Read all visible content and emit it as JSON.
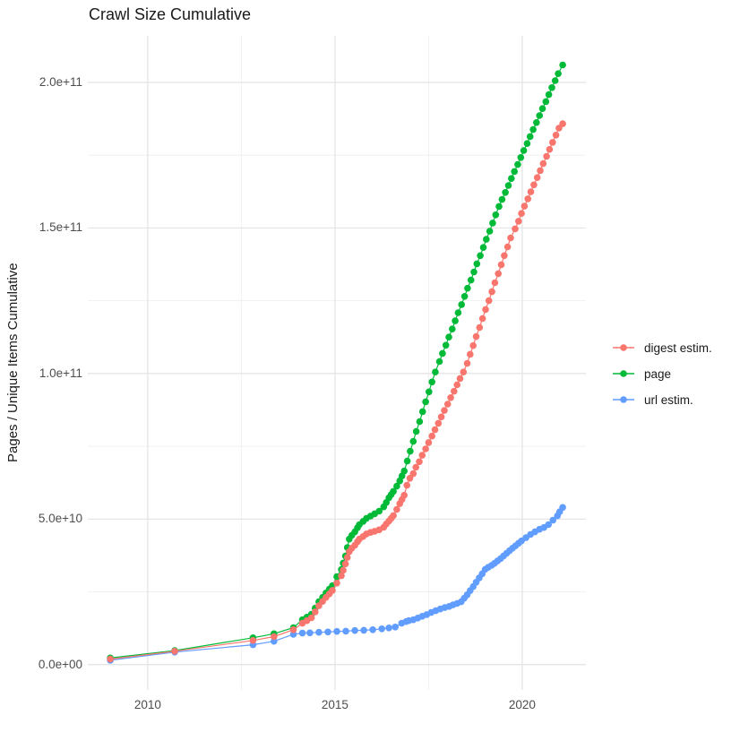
{
  "title": "Crawl Size Cumulative",
  "axes": {
    "x": {
      "domain": [
        2008.4,
        2021.7
      ],
      "ticks_major": [
        {
          "value": 2010,
          "label": "2010"
        },
        {
          "value": 2015,
          "label": "2015"
        },
        {
          "value": 2020,
          "label": "2020"
        }
      ],
      "ticks_minor": [
        2012.5,
        2017.5
      ]
    },
    "y": {
      "label": "Pages / Unique Items Cumulative",
      "domain": [
        -8700000000.0,
        216000000000.0
      ],
      "ticks_major": [
        {
          "value": 0,
          "label": "0.0e+00"
        },
        {
          "value": 50000000000.0,
          "label": "5.0e+10"
        },
        {
          "value": 100000000000.0,
          "label": "1.0e+11"
        },
        {
          "value": 150000000000.0,
          "label": "1.5e+11"
        },
        {
          "value": 200000000000.0,
          "label": "2.0e+11"
        }
      ],
      "ticks_minor": [
        25000000000.0,
        75000000000.0,
        125000000000.0,
        175000000000.0
      ]
    }
  },
  "style": {
    "grid_major_color": "#e3e3e3",
    "grid_minor_color": "#f0f0f0",
    "point_radius": 3.8,
    "line_width": 1.2
  },
  "legend": {
    "items": [
      {
        "label": "digest estim.",
        "color": "#F8766D"
      },
      {
        "label": "page",
        "color": "#00BA38"
      },
      {
        "label": "url estim.",
        "color": "#619CFF"
      }
    ]
  },
  "chart_data": {
    "type": "line",
    "title": "Crawl Size Cumulative",
    "xlabel": "",
    "ylabel": "Pages / Unique Items Cumulative",
    "x_unit": "year",
    "y_unit": "pages / unique items (cumulative)",
    "xlim": [
      2008.4,
      2021.7
    ],
    "ylim": [
      -8700000000.0,
      216000000000.0
    ],
    "grid": true,
    "legend_position": "right",
    "series": [
      {
        "name": "digest estim.",
        "color": "#F8766D",
        "points": [
          [
            2009.0,
            1900000000.0
          ],
          [
            2010.72,
            4600000000.0
          ],
          [
            2012.81,
            8300000000.0
          ],
          [
            2013.37,
            9600000000.0
          ],
          [
            2013.89,
            12000000000.0
          ],
          [
            2014.13,
            14200000000.0
          ],
          [
            2014.25,
            15100000000.0
          ],
          [
            2014.37,
            16100000000.0
          ],
          [
            2014.47,
            18100000000.0
          ],
          [
            2014.57,
            20200000000.0
          ],
          [
            2014.67,
            21700000000.0
          ],
          [
            2014.76,
            23100000000.0
          ],
          [
            2014.85,
            24300000000.0
          ],
          [
            2014.93,
            25500000000.0
          ],
          [
            2015.05,
            28000000000.0
          ],
          [
            2015.17,
            30500000000.0
          ],
          [
            2015.22,
            32400000000.0
          ],
          [
            2015.28,
            34600000000.0
          ],
          [
            2015.33,
            36800000000.0
          ],
          [
            2015.38,
            38800000000.0
          ],
          [
            2015.45,
            40000000000.0
          ],
          [
            2015.53,
            41000000000.0
          ],
          [
            2015.6,
            42200000000.0
          ],
          [
            2015.65,
            43100000000.0
          ],
          [
            2015.75,
            44000000000.0
          ],
          [
            2015.84,
            44900000000.0
          ],
          [
            2015.95,
            45400000000.0
          ],
          [
            2016.06,
            45800000000.0
          ],
          [
            2016.18,
            46300000000.0
          ],
          [
            2016.3,
            47200000000.0
          ],
          [
            2016.37,
            48300000000.0
          ],
          [
            2016.44,
            49300000000.0
          ],
          [
            2016.5,
            50200000000.0
          ],
          [
            2016.56,
            51200000000.0
          ],
          [
            2016.65,
            53300000000.0
          ],
          [
            2016.73,
            55300000000.0
          ],
          [
            2016.79,
            56700000000.0
          ],
          [
            2016.85,
            58200000000.0
          ],
          [
            2016.92,
            61600000000.0
          ],
          [
            2017.0,
            64000000000.0
          ],
          [
            2017.09,
            65600000000.0
          ],
          [
            2017.16,
            67800000000.0
          ],
          [
            2017.25,
            69700000000.0
          ],
          [
            2017.33,
            71900000000.0
          ],
          [
            2017.42,
            74100000000.0
          ],
          [
            2017.5,
            76300000000.0
          ],
          [
            2017.59,
            78500000000.0
          ],
          [
            2017.67,
            80700000000.0
          ],
          [
            2017.76,
            82900000000.0
          ],
          [
            2017.84,
            85100000000.0
          ],
          [
            2017.92,
            87300000000.0
          ],
          [
            2018.01,
            89500000000.0
          ],
          [
            2018.09,
            91700000000.0
          ],
          [
            2018.18,
            93900000000.0
          ],
          [
            2018.26,
            96100000000.0
          ],
          [
            2018.34,
            98300000000.0
          ],
          [
            2018.43,
            100500000000.0
          ],
          [
            2018.53,
            103500000000.0
          ],
          [
            2018.61,
            106600000000.0
          ],
          [
            2018.69,
            109600000000.0
          ],
          [
            2018.77,
            112700000000.0
          ],
          [
            2018.86,
            115800000000.0
          ],
          [
            2018.94,
            118900000000.0
          ],
          [
            2019.02,
            122000000000.0
          ],
          [
            2019.11,
            125000000000.0
          ],
          [
            2019.19,
            128100000000.0
          ],
          [
            2019.27,
            131200000000.0
          ],
          [
            2019.36,
            134300000000.0
          ],
          [
            2019.44,
            137400000000.0
          ],
          [
            2019.52,
            140500000000.0
          ],
          [
            2019.61,
            143500000000.0
          ],
          [
            2019.69,
            146600000000.0
          ],
          [
            2019.81,
            149700000000.0
          ],
          [
            2019.9,
            152300000000.0
          ],
          [
            2019.98,
            155000000000.0
          ],
          [
            2020.06,
            157500000000.0
          ],
          [
            2020.15,
            160000000000.0
          ],
          [
            2020.23,
            162400000000.0
          ],
          [
            2020.31,
            164800000000.0
          ],
          [
            2020.4,
            167300000000.0
          ],
          [
            2020.48,
            169700000000.0
          ],
          [
            2020.56,
            172100000000.0
          ],
          [
            2020.65,
            174600000000.0
          ],
          [
            2020.73,
            177000000000.0
          ],
          [
            2020.81,
            179400000000.0
          ],
          [
            2020.9,
            181900000000.0
          ],
          [
            2020.98,
            184300000000.0
          ],
          [
            2021.08,
            185800000000.0
          ]
        ]
      },
      {
        "name": "page",
        "color": "#00BA38",
        "points": [
          [
            2009.0,
            2300000000.0
          ],
          [
            2010.72,
            4800000000.0
          ],
          [
            2012.81,
            9200000000.0
          ],
          [
            2013.37,
            10600000000.0
          ],
          [
            2013.89,
            12700000000.0
          ],
          [
            2014.13,
            15400000000.0
          ],
          [
            2014.25,
            16300000000.0
          ],
          [
            2014.37,
            17300000000.0
          ],
          [
            2014.47,
            19400000000.0
          ],
          [
            2014.57,
            21600000000.0
          ],
          [
            2014.67,
            23100000000.0
          ],
          [
            2014.76,
            24600000000.0
          ],
          [
            2014.85,
            25900000000.0
          ],
          [
            2014.93,
            27100000000.0
          ],
          [
            2015.05,
            30200000000.0
          ],
          [
            2015.17,
            32700000000.0
          ],
          [
            2015.22,
            34900000000.0
          ],
          [
            2015.28,
            37300000000.0
          ],
          [
            2015.33,
            40200000000.0
          ],
          [
            2015.38,
            43100000000.0
          ],
          [
            2015.45,
            44400000000.0
          ],
          [
            2015.53,
            45600000000.0
          ],
          [
            2015.6,
            47000000000.0
          ],
          [
            2015.65,
            48100000000.0
          ],
          [
            2015.75,
            49200000000.0
          ],
          [
            2015.84,
            50200000000.0
          ],
          [
            2015.95,
            51000000000.0
          ],
          [
            2016.06,
            51800000000.0
          ],
          [
            2016.18,
            52700000000.0
          ],
          [
            2016.3,
            54200000000.0
          ],
          [
            2016.37,
            55700000000.0
          ],
          [
            2016.44,
            57300000000.0
          ],
          [
            2016.5,
            58400000000.0
          ],
          [
            2016.56,
            59500000000.0
          ],
          [
            2016.65,
            61300000000.0
          ],
          [
            2016.73,
            63100000000.0
          ],
          [
            2016.79,
            64800000000.0
          ],
          [
            2016.85,
            66500000000.0
          ],
          [
            2016.93,
            69900000000.0
          ],
          [
            2017.01,
            73300000000.0
          ],
          [
            2017.09,
            76700000000.0
          ],
          [
            2017.17,
            80100000000.0
          ],
          [
            2017.26,
            83500000000.0
          ],
          [
            2017.34,
            86900000000.0
          ],
          [
            2017.42,
            90300000000.0
          ],
          [
            2017.51,
            93700000000.0
          ],
          [
            2017.59,
            97100000000.0
          ],
          [
            2017.68,
            100500000000.0
          ],
          [
            2017.79,
            104100000000.0
          ],
          [
            2017.87,
            106900000000.0
          ],
          [
            2017.96,
            109700000000.0
          ],
          [
            2018.04,
            112500000000.0
          ],
          [
            2018.13,
            115300000000.0
          ],
          [
            2018.21,
            118100000000.0
          ],
          [
            2018.29,
            120900000000.0
          ],
          [
            2018.38,
            123700000000.0
          ],
          [
            2018.46,
            126500000000.0
          ],
          [
            2018.54,
            129300000000.0
          ],
          [
            2018.63,
            132100000000.0
          ],
          [
            2018.71,
            134900000000.0
          ],
          [
            2018.79,
            137700000000.0
          ],
          [
            2018.88,
            140500000000.0
          ],
          [
            2018.96,
            143300000000.0
          ],
          [
            2019.04,
            146100000000.0
          ],
          [
            2019.13,
            148900000000.0
          ],
          [
            2019.21,
            151700000000.0
          ],
          [
            2019.29,
            154500000000.0
          ],
          [
            2019.38,
            157400000000.0
          ],
          [
            2019.46,
            159800000000.0
          ],
          [
            2019.55,
            162200000000.0
          ],
          [
            2019.63,
            164600000000.0
          ],
          [
            2019.71,
            167000000000.0
          ],
          [
            2019.79,
            169400000000.0
          ],
          [
            2019.88,
            171800000000.0
          ],
          [
            2019.96,
            174200000000.0
          ],
          [
            2020.04,
            176600000000.0
          ],
          [
            2020.13,
            179000000000.0
          ],
          [
            2020.21,
            181400000000.0
          ],
          [
            2020.29,
            183800000000.0
          ],
          [
            2020.38,
            186200000000.0
          ],
          [
            2020.46,
            188600000000.0
          ],
          [
            2020.54,
            191000000000.0
          ],
          [
            2020.63,
            193400000000.0
          ],
          [
            2020.71,
            195800000000.0
          ],
          [
            2020.79,
            198200000000.0
          ],
          [
            2020.88,
            200600000000.0
          ],
          [
            2020.96,
            203000000000.0
          ],
          [
            2021.08,
            206000000000.0
          ]
        ]
      },
      {
        "name": "url estim.",
        "color": "#619CFF",
        "points": [
          [
            2009.0,
            1500000000.0
          ],
          [
            2010.72,
            4300000000.0
          ],
          [
            2012.81,
            6800000000.0
          ],
          [
            2013.37,
            8000000000.0
          ],
          [
            2013.89,
            10400000000.0
          ],
          [
            2014.13,
            10800000000.0
          ],
          [
            2014.33,
            10900000000.0
          ],
          [
            2014.57,
            11100000000.0
          ],
          [
            2014.81,
            11200000000.0
          ],
          [
            2015.05,
            11400000000.0
          ],
          [
            2015.29,
            11500000000.0
          ],
          [
            2015.53,
            11700000000.0
          ],
          [
            2015.77,
            11800000000.0
          ],
          [
            2016.01,
            12000000000.0
          ],
          [
            2016.25,
            12300000000.0
          ],
          [
            2016.44,
            12600000000.0
          ],
          [
            2016.61,
            12900000000.0
          ],
          [
            2016.78,
            14200000000.0
          ],
          [
            2016.9,
            14800000000.0
          ],
          [
            2016.97,
            15100000000.0
          ],
          [
            2017.09,
            15400000000.0
          ],
          [
            2017.21,
            16000000000.0
          ],
          [
            2017.33,
            16600000000.0
          ],
          [
            2017.45,
            17200000000.0
          ],
          [
            2017.57,
            17900000000.0
          ],
          [
            2017.69,
            18500000000.0
          ],
          [
            2017.81,
            19100000000.0
          ],
          [
            2017.93,
            19600000000.0
          ],
          [
            2018.05,
            20000000000.0
          ],
          [
            2018.15,
            20500000000.0
          ],
          [
            2018.26,
            21000000000.0
          ],
          [
            2018.37,
            21600000000.0
          ],
          [
            2018.45,
            22800000000.0
          ],
          [
            2018.53,
            24000000000.0
          ],
          [
            2018.61,
            25400000000.0
          ],
          [
            2018.69,
            26800000000.0
          ],
          [
            2018.77,
            28300000000.0
          ],
          [
            2018.85,
            29800000000.0
          ],
          [
            2018.93,
            31200000000.0
          ],
          [
            2019.01,
            32700000000.0
          ],
          [
            2019.09,
            33400000000.0
          ],
          [
            2019.18,
            34100000000.0
          ],
          [
            2019.26,
            34800000000.0
          ],
          [
            2019.34,
            35600000000.0
          ],
          [
            2019.42,
            36400000000.0
          ],
          [
            2019.5,
            37300000000.0
          ],
          [
            2019.58,
            38200000000.0
          ],
          [
            2019.66,
            39100000000.0
          ],
          [
            2019.74,
            40000000000.0
          ],
          [
            2019.82,
            40800000000.0
          ],
          [
            2019.9,
            41700000000.0
          ],
          [
            2019.98,
            42500000000.0
          ],
          [
            2020.1,
            43600000000.0
          ],
          [
            2020.22,
            44700000000.0
          ],
          [
            2020.34,
            45600000000.0
          ],
          [
            2020.46,
            46500000000.0
          ],
          [
            2020.58,
            47100000000.0
          ],
          [
            2020.7,
            48100000000.0
          ],
          [
            2020.82,
            49600000000.0
          ],
          [
            2020.94,
            51100000000.0
          ],
          [
            2021.0,
            52500000000.0
          ],
          [
            2021.08,
            54000000000.0
          ]
        ]
      }
    ]
  }
}
